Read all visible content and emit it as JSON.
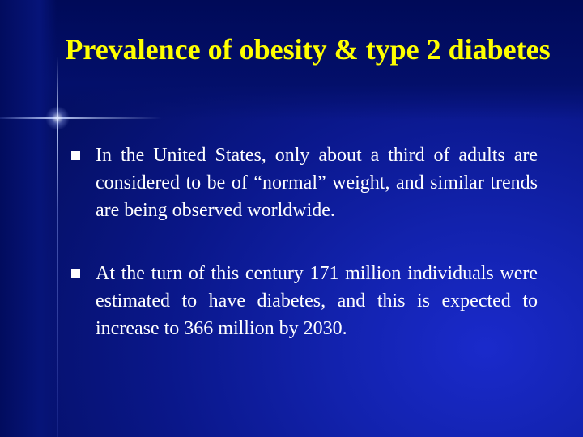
{
  "slide": {
    "title": "Prevalence of obesity & type 2 diabetes",
    "bullets": [
      {
        "text": "In the United States, only about a third of adults are considered to be of “normal” weight, and similar trends are being observed worldwide."
      },
      {
        "text": "At the turn of this century 171 million individuals were estimated to have diabetes, and this is expected to increase to 366 million by 2030."
      }
    ],
    "colors": {
      "background": "#0a178a",
      "title": "#ffff00",
      "text": "#ffffff"
    },
    "icons": {
      "bullet_marker": "square-bullet-icon",
      "decoration": "sparkle-cross-icon"
    }
  }
}
